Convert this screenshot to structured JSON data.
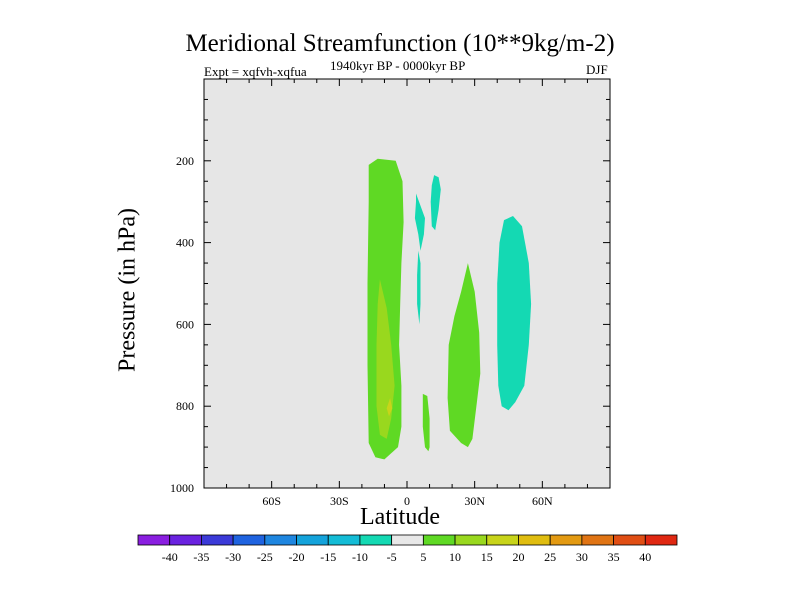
{
  "figure": {
    "title": "Meridional Streamfunction (10**9kg/m-2)",
    "experiment": "Expt = xqfvh-xqfua",
    "period": "1940kyr BP - 0000kyr BP",
    "season": "DJF"
  },
  "colors": {
    "background_field": "#e6e6e6",
    "positive_5_10": "#5fd924",
    "positive_10_15": "#99d81e",
    "positive_15_20": "#c8d41a",
    "negative_minus10_minus5": "#14d9b3"
  },
  "chart_data": {
    "type": "heatmap",
    "subtype": "filled-contour",
    "title": "Meridional Streamfunction (10**9kg/m-2)",
    "xlabel": "Latitude",
    "ylabel": "Pressure (in hPa)",
    "xlim": [
      -90,
      90
    ],
    "ylim": [
      1000,
      0
    ],
    "x_ticks": [
      {
        "value": -60,
        "label": "60S"
      },
      {
        "value": -30,
        "label": "30S"
      },
      {
        "value": 0,
        "label": "0"
      },
      {
        "value": 30,
        "label": "30N"
      },
      {
        "value": 60,
        "label": "60N"
      }
    ],
    "y_ticks": [
      {
        "value": 200,
        "label": "200"
      },
      {
        "value": 400,
        "label": "400"
      },
      {
        "value": 600,
        "label": "600"
      },
      {
        "value": 800,
        "label": "800"
      },
      {
        "value": 1000,
        "label": "1000"
      }
    ],
    "regions": [
      {
        "name": "green-cell-sh",
        "level": 5,
        "color": "#5fd924",
        "points": [
          [
            -17,
            210
          ],
          [
            -13,
            195
          ],
          [
            -5,
            200
          ],
          [
            -2,
            250
          ],
          [
            -1.5,
            350
          ],
          [
            -2.5,
            450
          ],
          [
            -3,
            550
          ],
          [
            -3.5,
            650
          ],
          [
            -2.5,
            750
          ],
          [
            -2.5,
            850
          ],
          [
            -4,
            900
          ],
          [
            -10,
            930
          ],
          [
            -14,
            925
          ],
          [
            -17,
            890
          ],
          [
            -17.5,
            700
          ],
          [
            -17.5,
            500
          ],
          [
            -17,
            300
          ]
        ]
      },
      {
        "name": "yellowgreen-cell-sh",
        "level": 10,
        "color": "#99d81e",
        "points": [
          [
            -12,
            490
          ],
          [
            -9,
            560
          ],
          [
            -7,
            650
          ],
          [
            -5.5,
            750
          ],
          [
            -7,
            830
          ],
          [
            -9,
            880
          ],
          [
            -12,
            870
          ],
          [
            -13.5,
            800
          ],
          [
            -13.5,
            650
          ],
          [
            -13,
            550
          ]
        ]
      },
      {
        "name": "yellow-core-sh",
        "level": 15,
        "color": "#c8d41a",
        "points": [
          [
            -7.5,
            780
          ],
          [
            -6.5,
            805
          ],
          [
            -8,
            825
          ],
          [
            -9,
            805
          ]
        ]
      },
      {
        "name": "green-cell-nh",
        "level": 5,
        "color": "#5fd924",
        "points": [
          [
            27,
            450
          ],
          [
            30,
            520
          ],
          [
            32,
            620
          ],
          [
            32.5,
            720
          ],
          [
            31,
            790
          ],
          [
            29,
            880
          ],
          [
            27,
            900
          ],
          [
            24,
            890
          ],
          [
            19,
            860
          ],
          [
            18,
            780
          ],
          [
            18.5,
            650
          ],
          [
            21,
            580
          ],
          [
            24,
            520
          ]
        ]
      },
      {
        "name": "green-sliver-eq",
        "level": 5,
        "color": "#5fd924",
        "points": [
          [
            7,
            770
          ],
          [
            9,
            775
          ],
          [
            10,
            830
          ],
          [
            10,
            900
          ],
          [
            9.5,
            910
          ],
          [
            8,
            900
          ],
          [
            7,
            850
          ]
        ]
      },
      {
        "name": "cyan-sliver-eq-upper",
        "level": -5,
        "color": "#14d9b3",
        "points": [
          [
            4,
            280
          ],
          [
            6,
            310
          ],
          [
            8,
            340
          ],
          [
            7.5,
            380
          ],
          [
            6,
            420
          ],
          [
            5,
            380
          ],
          [
            3.5,
            340
          ],
          [
            4,
            300
          ]
        ]
      },
      {
        "name": "cyan-sliver-eq-lower",
        "level": -5,
        "color": "#14d9b3",
        "points": [
          [
            5,
            420
          ],
          [
            6,
            450
          ],
          [
            6,
            550
          ],
          [
            5.5,
            600
          ],
          [
            4.5,
            550
          ],
          [
            4.5,
            480
          ]
        ]
      },
      {
        "name": "cyan-sliver-nh",
        "level": -5,
        "color": "#14d9b3",
        "points": [
          [
            12,
            235
          ],
          [
            14,
            240
          ],
          [
            15,
            270
          ],
          [
            14,
            320
          ],
          [
            12.5,
            370
          ],
          [
            11,
            360
          ],
          [
            10.5,
            300
          ],
          [
            11,
            260
          ]
        ]
      },
      {
        "name": "cyan-cell-nh",
        "level": -5,
        "color": "#14d9b3",
        "points": [
          [
            43,
            345
          ],
          [
            47,
            335
          ],
          [
            51,
            360
          ],
          [
            54,
            450
          ],
          [
            55,
            550
          ],
          [
            54,
            650
          ],
          [
            52,
            750
          ],
          [
            48,
            790
          ],
          [
            45,
            810
          ],
          [
            42,
            800
          ],
          [
            40.5,
            750
          ],
          [
            40,
            650
          ],
          [
            40,
            500
          ],
          [
            41,
            400
          ]
        ]
      }
    ],
    "colorbar": {
      "labels": [
        "-40",
        "-35",
        "-30",
        "-25",
        "-20",
        "-15",
        "-10",
        "-5",
        "5",
        "10",
        "15",
        "20",
        "25",
        "30",
        "35",
        "40"
      ],
      "colors": [
        "#8a1ee0",
        "#6a22e0",
        "#3b3ad8",
        "#1f63e0",
        "#1e86e0",
        "#14a3db",
        "#14bcd6",
        "#14d9b3",
        "#e8e8e8",
        "#5fd924",
        "#99d81e",
        "#c8d41a",
        "#e0bd10",
        "#e39a12",
        "#e07414",
        "#e04e14",
        "#e02812"
      ]
    }
  }
}
